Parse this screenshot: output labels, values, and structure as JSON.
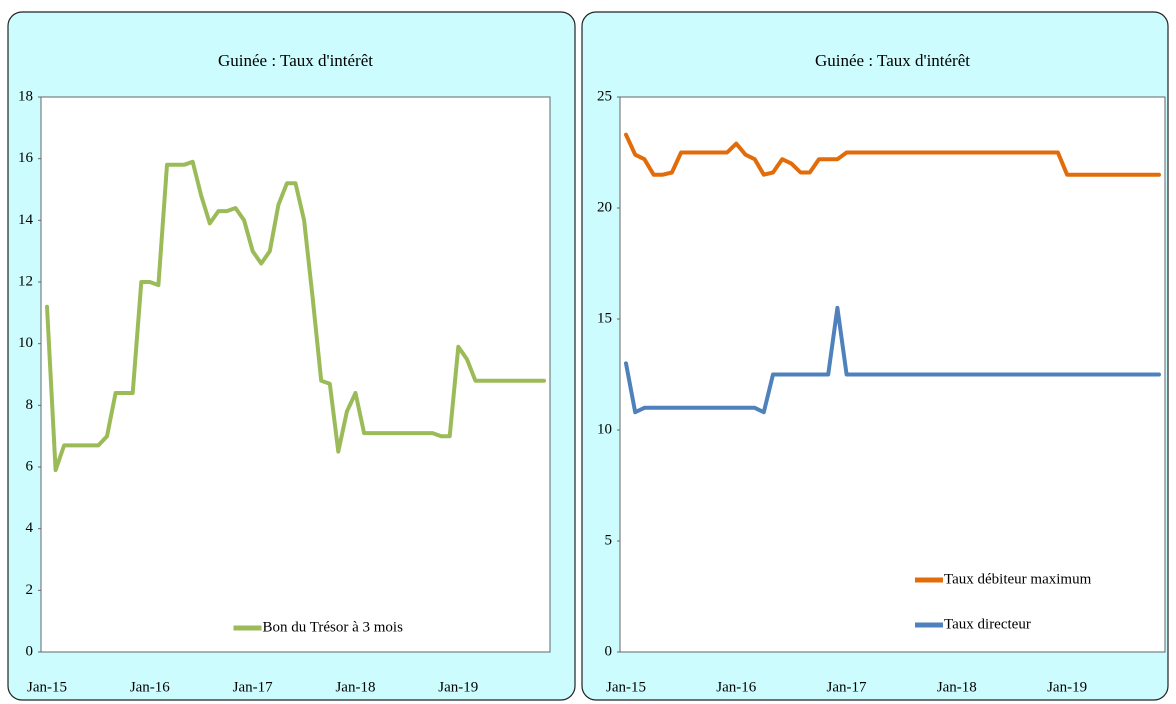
{
  "chart_data": [
    {
      "type": "line",
      "title": "Guinée : Taux d'intérêt",
      "categories": [
        "Jan-15",
        null,
        null,
        null,
        null,
        null,
        null,
        null,
        null,
        null,
        null,
        null,
        "Jan-16",
        null,
        null,
        null,
        null,
        null,
        null,
        null,
        null,
        null,
        null,
        null,
        "Jan-17",
        null,
        null,
        null,
        null,
        null,
        null,
        null,
        null,
        null,
        null,
        null,
        "Jan-18",
        null,
        null,
        null,
        null,
        null,
        null,
        null,
        null,
        null,
        null,
        null,
        "Jan-19",
        null,
        null,
        null,
        null,
        null,
        null,
        null,
        null,
        null,
        null
      ],
      "series": [
        {
          "name": "Bon du Trésor à 3 mois",
          "color": "#9bbb59",
          "values": [
            11.2,
            5.9,
            6.7,
            6.7,
            6.7,
            6.7,
            6.7,
            7.0,
            8.4,
            8.4,
            8.4,
            12.0,
            12.0,
            11.9,
            15.8,
            15.8,
            15.8,
            15.9,
            14.8,
            13.9,
            14.3,
            14.3,
            14.4,
            14.0,
            13.0,
            12.6,
            13.0,
            14.5,
            15.2,
            15.2,
            14.0,
            11.5,
            8.8,
            8.7,
            6.5,
            7.8,
            8.4,
            7.1,
            7.1,
            7.1,
            7.1,
            7.1,
            7.1,
            7.1,
            7.1,
            7.1,
            7.0,
            7.0,
            9.9,
            9.5,
            8.8,
            8.8,
            8.8,
            8.8,
            8.8,
            8.8,
            8.8,
            8.8,
            8.8
          ]
        }
      ],
      "ylim": [
        0,
        18
      ],
      "yticks": [
        0,
        2,
        4,
        6,
        8,
        10,
        12,
        14,
        16,
        18
      ],
      "grid": false,
      "legend": "lower center"
    },
    {
      "type": "line",
      "title": "Guinée : Taux d'intérêt",
      "categories": [
        "Jan-15",
        null,
        null,
        null,
        null,
        null,
        null,
        null,
        null,
        null,
        null,
        null,
        "Jan-16",
        null,
        null,
        null,
        null,
        null,
        null,
        null,
        null,
        null,
        null,
        null,
        "Jan-17",
        null,
        null,
        null,
        null,
        null,
        null,
        null,
        null,
        null,
        null,
        null,
        "Jan-18",
        null,
        null,
        null,
        null,
        null,
        null,
        null,
        null,
        null,
        null,
        null,
        "Jan-19",
        null,
        null,
        null,
        null,
        null,
        null,
        null,
        null,
        null,
        null
      ],
      "series": [
        {
          "name": "Taux débiteur maximum",
          "color": "#e36c0a",
          "values": [
            23.3,
            22.4,
            22.2,
            21.5,
            21.5,
            21.6,
            22.5,
            22.5,
            22.5,
            22.5,
            22.5,
            22.5,
            22.9,
            22.4,
            22.2,
            21.5,
            21.6,
            22.2,
            22.0,
            21.6,
            21.6,
            22.2,
            22.2,
            22.2,
            22.5,
            22.5,
            22.5,
            22.5,
            22.5,
            22.5,
            22.5,
            22.5,
            22.5,
            22.5,
            22.5,
            22.5,
            22.5,
            22.5,
            22.5,
            22.5,
            22.5,
            22.5,
            22.5,
            22.5,
            22.5,
            22.5,
            22.5,
            22.5,
            21.5,
            21.5,
            21.5,
            21.5,
            21.5,
            21.5,
            21.5,
            21.5,
            21.5,
            21.5,
            21.5
          ]
        },
        {
          "name": "Taux   directeur",
          "color": "#4f81bd",
          "values": [
            13.0,
            10.8,
            11.0,
            11.0,
            11.0,
            11.0,
            11.0,
            11.0,
            11.0,
            11.0,
            11.0,
            11.0,
            11.0,
            11.0,
            11.0,
            10.8,
            12.5,
            12.5,
            12.5,
            12.5,
            12.5,
            12.5,
            12.5,
            15.5,
            12.5,
            12.5,
            12.5,
            12.5,
            12.5,
            12.5,
            12.5,
            12.5,
            12.5,
            12.5,
            12.5,
            12.5,
            12.5,
            12.5,
            12.5,
            12.5,
            12.5,
            12.5,
            12.5,
            12.5,
            12.5,
            12.5,
            12.5,
            12.5,
            12.5,
            12.5,
            12.5,
            12.5,
            12.5,
            12.5,
            12.5,
            12.5,
            12.5,
            12.5,
            12.5
          ]
        }
      ],
      "ylim": [
        0,
        25
      ],
      "yticks": [
        0,
        5,
        10,
        15,
        20,
        25
      ],
      "grid": false,
      "legend": "lower right"
    }
  ]
}
